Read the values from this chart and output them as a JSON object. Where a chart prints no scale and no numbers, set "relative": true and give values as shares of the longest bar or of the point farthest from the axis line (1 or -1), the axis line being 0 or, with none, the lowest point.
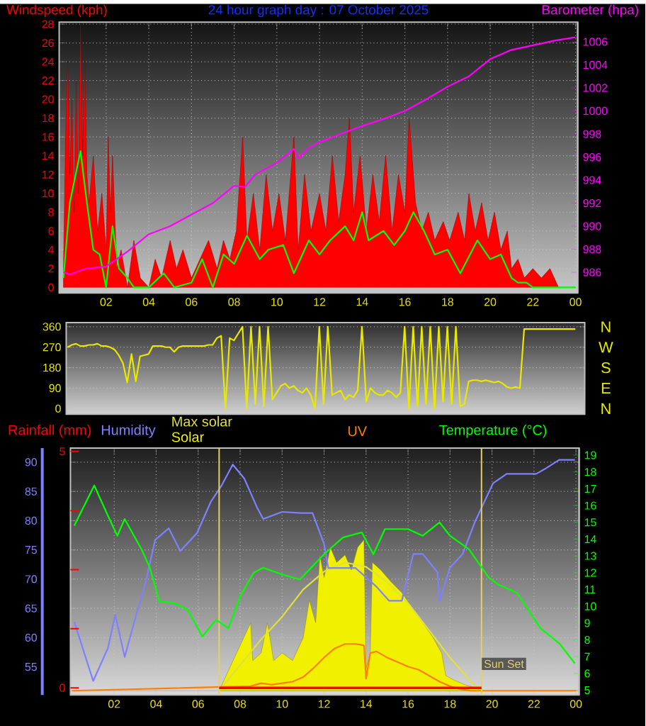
{
  "chart_data": [
    {
      "type": "line",
      "title": "24 hour graph day : 07 October 2025",
      "ylabel": "Windspeed (kph)",
      "y2label": "Barometer (hpa)",
      "xlim": [
        "2025-10-06T23:48",
        "2025-10-08T00:06"
      ],
      "xticks": [
        {
          "value": "2025-10-07T02:00",
          "label": "02"
        },
        {
          "value": "2025-10-07T04:00",
          "label": "04"
        },
        {
          "value": "2025-10-07T06:00",
          "label": "06"
        },
        {
          "value": "2025-10-07T08:00",
          "label": "08"
        },
        {
          "value": "2025-10-07T10:00",
          "label": "10"
        },
        {
          "value": "2025-10-07T12:00",
          "label": "12"
        },
        {
          "value": "2025-10-07T14:00",
          "label": "14"
        },
        {
          "value": "2025-10-07T16:00",
          "label": "16"
        },
        {
          "value": "2025-10-07T18:00",
          "label": "18"
        },
        {
          "value": "2025-10-07T20:00",
          "label": "20"
        },
        {
          "value": "2025-10-07T22:00",
          "label": "22"
        },
        {
          "value": "2025-10-08T00:00",
          "label": "00"
        }
      ],
      "ylim": [
        -0.6,
        28.2
      ],
      "yticks": [
        0,
        2,
        4,
        6,
        8,
        10,
        12,
        14,
        16,
        18,
        20,
        22,
        24,
        26,
        28
      ],
      "y2lim": [
        984.2,
        1007.7
      ],
      "y2ticks": [
        986,
        988,
        990,
        992,
        994,
        996,
        998,
        1000,
        1002,
        1004,
        1006
      ],
      "grid": true,
      "series": [
        {
          "type": "area",
          "color": "#ff0000",
          "x": [
            "2025-10-07T00:00",
            "2025-10-07T00:06",
            "2025-10-07T00:12",
            "2025-10-07T00:18",
            "2025-10-07T00:24",
            "2025-10-07T00:30",
            "2025-10-07T00:36",
            "2025-10-07T00:42",
            "2025-10-07T00:48",
            "2025-10-07T00:54",
            "2025-10-07T01:00",
            "2025-10-07T01:06",
            "2025-10-07T01:12",
            "2025-10-07T01:24",
            "2025-10-07T01:36",
            "2025-10-07T01:48",
            "2025-10-07T02:00",
            "2025-10-07T02:06",
            "2025-10-07T02:12",
            "2025-10-07T02:18",
            "2025-10-07T02:30",
            "2025-10-07T02:42",
            "2025-10-07T03:00",
            "2025-10-07T03:18",
            "2025-10-07T03:36",
            "2025-10-07T04:00",
            "2025-10-07T04:18",
            "2025-10-07T04:36",
            "2025-10-07T05:00",
            "2025-10-07T05:18",
            "2025-10-07T05:36",
            "2025-10-07T06:00",
            "2025-10-07T06:24",
            "2025-10-07T06:48",
            "2025-10-07T07:12",
            "2025-10-07T07:30",
            "2025-10-07T07:48",
            "2025-10-07T08:06",
            "2025-10-07T08:24",
            "2025-10-07T08:36",
            "2025-10-07T08:54",
            "2025-10-07T09:12",
            "2025-10-07T09:30",
            "2025-10-07T09:48",
            "2025-10-07T10:06",
            "2025-10-07T10:24",
            "2025-10-07T10:48",
            "2025-10-07T11:00",
            "2025-10-07T11:18",
            "2025-10-07T11:36",
            "2025-10-07T12:00",
            "2025-10-07T12:18",
            "2025-10-07T12:36",
            "2025-10-07T12:54",
            "2025-10-07T13:12",
            "2025-10-07T13:24",
            "2025-10-07T13:36",
            "2025-10-07T13:54",
            "2025-10-07T14:12",
            "2025-10-07T14:30",
            "2025-10-07T14:48",
            "2025-10-07T15:06",
            "2025-10-07T15:24",
            "2025-10-07T15:42",
            "2025-10-07T16:00",
            "2025-10-07T16:12",
            "2025-10-07T16:30",
            "2025-10-07T16:48",
            "2025-10-07T17:06",
            "2025-10-07T17:24",
            "2025-10-07T17:48",
            "2025-10-07T18:06",
            "2025-10-07T18:30",
            "2025-10-07T18:48",
            "2025-10-07T19:00",
            "2025-10-07T19:18",
            "2025-10-07T19:36",
            "2025-10-07T19:54",
            "2025-10-07T20:12",
            "2025-10-07T20:30",
            "2025-10-07T20:48",
            "2025-10-07T21:00",
            "2025-10-07T21:18",
            "2025-10-07T21:36",
            "2025-10-07T22:00",
            "2025-10-07T22:24",
            "2025-10-07T22:48",
            "2025-10-07T23:12",
            "2025-10-07T23:36",
            "2025-10-08T00:00"
          ],
          "values": [
            2,
            16,
            24,
            12,
            20,
            8,
            22,
            10,
            28,
            14,
            24,
            12,
            9,
            14,
            6,
            10,
            4,
            16,
            8,
            14,
            2,
            4,
            0,
            5,
            1,
            0,
            3,
            1,
            5,
            2,
            4,
            1,
            3,
            5,
            2,
            5,
            3,
            6,
            16,
            5,
            10,
            4,
            12,
            6,
            10,
            5,
            16,
            4,
            12,
            6,
            10,
            6,
            14,
            7,
            12,
            18,
            8,
            14,
            6,
            12,
            7,
            14,
            6,
            12,
            8,
            18,
            9,
            6,
            8,
            5,
            7,
            5,
            8,
            5,
            10,
            6,
            9,
            5,
            8,
            4,
            6,
            2,
            3,
            1,
            2,
            1,
            2,
            0,
            0,
            0
          ]
        },
        {
          "color": "#00ff00",
          "x": [
            "2025-10-07T00:00",
            "2025-10-07T00:18",
            "2025-10-07T00:48",
            "2025-10-07T01:06",
            "2025-10-07T01:24",
            "2025-10-07T01:42",
            "2025-10-07T02:00",
            "2025-10-07T02:18",
            "2025-10-07T02:36",
            "2025-10-07T03:00",
            "2025-10-07T03:18",
            "2025-10-07T04:00",
            "2025-10-07T04:42",
            "2025-10-07T05:12",
            "2025-10-07T06:00",
            "2025-10-07T06:30",
            "2025-10-07T07:00",
            "2025-10-07T07:30",
            "2025-10-07T08:00",
            "2025-10-07T08:36",
            "2025-10-07T09:12",
            "2025-10-07T09:36",
            "2025-10-07T10:18",
            "2025-10-07T10:48",
            "2025-10-07T11:30",
            "2025-10-07T12:00",
            "2025-10-07T12:30",
            "2025-10-07T13:12",
            "2025-10-07T13:36",
            "2025-10-07T14:00",
            "2025-10-07T14:18",
            "2025-10-07T15:00",
            "2025-10-07T15:30",
            "2025-10-07T16:00",
            "2025-10-07T16:24",
            "2025-10-07T16:54",
            "2025-10-07T17:24",
            "2025-10-07T18:00",
            "2025-10-07T18:36",
            "2025-10-07T19:24",
            "2025-10-07T20:00",
            "2025-10-07T20:30",
            "2025-10-07T21:00",
            "2025-10-07T21:18",
            "2025-10-07T21:42",
            "2025-10-07T22:00",
            "2025-10-08T00:00"
          ],
          "values": [
            1,
            9,
            14.5,
            9,
            4,
            3.5,
            0,
            6.5,
            2,
            1,
            0,
            0,
            1.5,
            0,
            0.5,
            3,
            0,
            3.5,
            2.5,
            5.5,
            3,
            4,
            4.5,
            1.5,
            5,
            3.5,
            5,
            6.5,
            5,
            8,
            5,
            6,
            4.5,
            6,
            8,
            6,
            3.5,
            4,
            1.5,
            5,
            3,
            3.5,
            1,
            0.5,
            0.5,
            0,
            0
          ]
        },
        {
          "color": "#ff00ff",
          "axis": "y2",
          "x": [
            "2025-10-07T00:00",
            "2025-10-07T00:18",
            "2025-10-07T01:00",
            "2025-10-07T02:00",
            "2025-10-07T03:00",
            "2025-10-07T04:00",
            "2025-10-07T05:00",
            "2025-10-07T06:00",
            "2025-10-07T07:00",
            "2025-10-07T08:00",
            "2025-10-07T08:30",
            "2025-10-07T09:00",
            "2025-10-07T10:00",
            "2025-10-07T10:48",
            "2025-10-07T11:00",
            "2025-10-07T11:30",
            "2025-10-07T12:00",
            "2025-10-07T13:00",
            "2025-10-07T14:00",
            "2025-10-07T15:00",
            "2025-10-07T16:00",
            "2025-10-07T17:00",
            "2025-10-07T18:00",
            "2025-10-07T19:00",
            "2025-10-07T20:00",
            "2025-10-07T21:00",
            "2025-10-07T22:00",
            "2025-10-07T23:00",
            "2025-10-08T00:00"
          ],
          "values": [
            986,
            985.8,
            986.3,
            986.5,
            987.8,
            989.3,
            990,
            991,
            992,
            993.5,
            993.4,
            994.5,
            995.5,
            996.7,
            995.9,
            996.8,
            997.3,
            998,
            998.7,
            999.3,
            1000,
            1001,
            1002.1,
            1003,
            1004.5,
            1005.3,
            1005.7,
            1006.1,
            1006.4
          ]
        }
      ]
    },
    {
      "type": "line",
      "categories": [
        null,
        null,
        null,
        null,
        null,
        null,
        null,
        null,
        null,
        null,
        null,
        null,
        null,
        null,
        null,
        null,
        null,
        null,
        null,
        null,
        null,
        null,
        null,
        null,
        null,
        null,
        null,
        null,
        null,
        null,
        null,
        null,
        null,
        null,
        null,
        null,
        null,
        null,
        null,
        null,
        null,
        null,
        null,
        null,
        null,
        null,
        null,
        null,
        null,
        null,
        null,
        null,
        null,
        null,
        null,
        null,
        null,
        null,
        null,
        null,
        null,
        null,
        null,
        null,
        null,
        null,
        null,
        null,
        null,
        null,
        null,
        null,
        null,
        null,
        null,
        null,
        null,
        null,
        null,
        null,
        null,
        null,
        null,
        null,
        null,
        null,
        null,
        null,
        null,
        null,
        null,
        null,
        null,
        null,
        null,
        null,
        null,
        null,
        null,
        null,
        null,
        null,
        null,
        null,
        null,
        null,
        null,
        null,
        null,
        null,
        null,
        null,
        null,
        null,
        null,
        null,
        null,
        null,
        null,
        null
      ],
      "ylim": [
        -25,
        378
      ],
      "yticks": [
        0,
        90,
        180,
        270,
        360
      ],
      "annotations": [
        "N",
        "W",
        "S",
        "E",
        "N"
      ],
      "tick_labels": "y",
      "grid": "y",
      "series": [
        {
          "color": "#e8e800",
          "values": [
            270,
            280,
            285,
            275,
            275,
            280,
            280,
            285,
            275,
            275,
            270,
            260,
            235,
            200,
            115,
            240,
            120,
            230,
            235,
            240,
            275,
            275,
            275,
            270,
            270,
            250,
            270,
            275,
            275,
            275,
            275,
            275,
            275,
            280,
            280,
            310,
            320,
            0,
            310,
            300,
            330,
            360,
            0,
            360,
            20,
            360,
            10,
            360,
            40,
            70,
            100,
            110,
            90,
            100,
            80,
            70,
            90,
            60,
            0,
            360,
            20,
            360,
            60,
            70,
            80,
            40,
            60,
            50,
            80,
            360,
            30,
            90,
            70,
            60,
            60,
            80,
            70,
            50,
            70,
            360,
            0,
            360,
            10,
            360,
            20,
            360,
            0,
            360,
            30,
            360,
            20,
            360,
            10,
            20,
            120,
            125,
            125,
            120,
            125,
            120,
            115,
            120,
            110,
            95,
            90,
            95,
            90,
            350,
            350,
            350,
            350,
            350,
            350,
            350,
            350,
            350,
            350,
            350,
            350,
            350
          ]
        }
      ]
    },
    {
      "type": "line",
      "xlim": [
        "2025-10-06T23:55",
        "2025-10-08T00:09"
      ],
      "xticks": [
        {
          "value": "2025-10-07T02:00",
          "label": "02"
        },
        {
          "value": "2025-10-07T04:00",
          "label": "04"
        },
        {
          "value": "2025-10-07T06:00",
          "label": "06"
        },
        {
          "value": "2025-10-07T08:00",
          "label": "08"
        },
        {
          "value": "2025-10-07T10:00",
          "label": "10"
        },
        {
          "value": "2025-10-07T12:00",
          "label": "12"
        },
        {
          "value": "2025-10-07T14:00",
          "label": "14"
        },
        {
          "value": "2025-10-07T16:00",
          "label": "16"
        },
        {
          "value": "2025-10-07T18:00",
          "label": "18"
        },
        {
          "value": "2025-10-07T20:00",
          "label": "20"
        },
        {
          "value": "2025-10-07T22:00",
          "label": "22"
        },
        {
          "value": "2025-10-08T00:00",
          "label": "00"
        }
      ],
      "ylim": [
        50.2,
        92.4
      ],
      "yticks": [
        55,
        60,
        65,
        70,
        75,
        80,
        85,
        90
      ],
      "y2lim": [
        4.72,
        19.42
      ],
      "y2ticks": [
        5,
        6,
        7,
        8,
        9,
        10,
        11,
        12,
        13,
        14,
        15,
        16,
        17,
        18,
        19
      ],
      "y3lim": [
        -0.15,
        5.07
      ],
      "y3ticks": [
        0,
        {
          "value": 1.25,
          "label": null
        },
        {
          "value": 2.5,
          "label": null
        },
        {
          "value": 3.75,
          "label": null
        },
        5
      ],
      "grid": true,
      "ref_lines": [
        {
          "axis": "x",
          "value": "2025-10-07T07:00",
          "color": "#e8d060"
        },
        {
          "axis": "x",
          "value": "2025-10-07T19:30",
          "label": "Sun Set",
          "color": "#e8d060"
        }
      ],
      "series": [
        {
          "name": "Rainfall (mm)",
          "color": "#ff0000",
          "axis": "y3",
          "x": [
            "2025-10-07T07:00",
            "2025-10-07T19:30"
          ],
          "values": [
            0,
            0
          ]
        },
        {
          "name": "Humidity",
          "color": "#8080ff",
          "x": [
            "2025-10-07T00:06",
            "2025-10-07T01:00",
            "2025-10-07T01:42",
            "2025-10-07T02:03",
            "2025-10-07T02:30",
            "2025-10-07T03:03",
            "2025-10-07T03:30",
            "2025-10-07T03:57",
            "2025-10-07T04:36",
            "2025-10-07T05:09",
            "2025-10-07T05:57",
            "2025-10-07T06:36",
            "2025-10-07T07:06",
            "2025-10-07T07:39",
            "2025-10-07T08:12",
            "2025-10-07T08:48",
            "2025-10-07T09:06",
            "2025-10-07T10:00",
            "2025-10-07T10:54",
            "2025-10-07T11:27",
            "2025-10-07T12:00",
            "2025-10-07T12:12",
            "2025-10-07T12:42",
            "2025-10-07T13:30",
            "2025-10-07T14:30",
            "2025-10-07T15:06",
            "2025-10-07T15:42",
            "2025-10-07T16:15",
            "2025-10-07T16:42",
            "2025-10-07T17:24",
            "2025-10-07T17:30",
            "2025-10-07T18:00",
            "2025-10-07T18:36",
            "2025-10-07T19:12",
            "2025-10-07T20:03",
            "2025-10-07T20:42",
            "2025-10-07T22:06",
            "2025-10-07T22:30",
            "2025-10-07T23:12",
            "2025-10-07T23:57"
          ],
          "values": [
            62.7,
            52.6,
            58.2,
            63.9,
            56.7,
            63.9,
            69.5,
            76.7,
            78.7,
            74.8,
            77.9,
            83.2,
            85.9,
            89.6,
            87.2,
            82.3,
            80.3,
            81.5,
            81.3,
            81.3,
            76,
            71.9,
            71.9,
            71.9,
            68.7,
            66.3,
            66.3,
            74.3,
            74.3,
            71.2,
            66.3,
            72,
            74.3,
            79.9,
            86.4,
            88,
            88,
            88.8,
            90.4,
            90.4
          ]
        },
        {
          "name": "Temperature (°C)",
          "color": "#00ff00",
          "axis": "y2",
          "x": [
            "2025-10-07T00:06",
            "2025-10-07T01:03",
            "2025-10-07T01:42",
            "2025-10-07T02:09",
            "2025-10-07T02:30",
            "2025-10-07T03:18",
            "2025-10-07T03:42",
            "2025-10-07T04:09",
            "2025-10-07T04:51",
            "2025-10-07T05:30",
            "2025-10-07T06:12",
            "2025-10-07T06:51",
            "2025-10-07T07:27",
            "2025-10-07T08:00",
            "2025-10-07T08:39",
            "2025-10-07T09:06",
            "2025-10-07T10:00",
            "2025-10-07T10:51",
            "2025-10-07T12:00",
            "2025-10-07T12:54",
            "2025-10-07T13:48",
            "2025-10-07T14:21",
            "2025-10-07T14:54",
            "2025-10-07T16:00",
            "2025-10-07T16:42",
            "2025-10-07T17:30",
            "2025-10-07T18:00",
            "2025-10-07T18:54",
            "2025-10-07T19:51",
            "2025-10-07T20:18",
            "2025-10-07T21:12",
            "2025-10-07T22:18",
            "2025-10-07T23:12",
            "2025-10-07T23:57"
          ],
          "values": [
            14.8,
            17.2,
            15.4,
            14.2,
            15.2,
            13.4,
            12.3,
            10.3,
            10.2,
            9.8,
            8.2,
            9.2,
            8.7,
            10.6,
            12,
            12.3,
            11.9,
            11.6,
            13.1,
            14.1,
            14.4,
            13.1,
            14.6,
            14.6,
            14.2,
            15,
            14.2,
            13.4,
            11.7,
            11.3,
            10.8,
            8.7,
            7.8,
            6.6
          ]
        }
      ]
    },
    {
      "type": "line",
      "relative": true,
      "xlim": [
        "2025-10-06T23:55",
        "2025-10-08T00:09"
      ],
      "tick_labels": false,
      "series": [
        {
          "name": "Max solar",
          "color": "#e0e040",
          "x": [
            "2025-10-07T07:00",
            "2025-10-07T08:00",
            "2025-10-07T09:00",
            "2025-10-07T10:00",
            "2025-10-07T11:00",
            "2025-10-07T12:00",
            "2025-10-07T13:00",
            "2025-10-07T14:00",
            "2025-10-07T15:00",
            "2025-10-07T16:00",
            "2025-10-07T17:00",
            "2025-10-07T18:00",
            "2025-10-07T19:00",
            "2025-10-07T19:30"
          ],
          "values": [
            0,
            0.17,
            0.34,
            0.49,
            0.67,
            0.79,
            0.85,
            0.82,
            0.72,
            0.58,
            0.4,
            0.22,
            0.06,
            0
          ]
        },
        {
          "name": "Solar",
          "type": "area",
          "color": "#f0f000",
          "x": [
            "2025-10-07T07:00",
            "2025-10-07T07:30",
            "2025-10-07T08:00",
            "2025-10-07T08:30",
            "2025-10-07T08:36",
            "2025-10-07T09:00",
            "2025-10-07T09:18",
            "2025-10-07T09:36",
            "2025-10-07T10:00",
            "2025-10-07T10:30",
            "2025-10-07T11:00",
            "2025-10-07T11:18",
            "2025-10-07T11:36",
            "2025-10-07T11:48",
            "2025-10-07T12:00",
            "2025-10-07T12:18",
            "2025-10-07T12:36",
            "2025-10-07T13:00",
            "2025-10-07T13:18",
            "2025-10-07T13:36",
            "2025-10-07T13:54",
            "2025-10-07T14:00",
            "2025-10-07T14:12",
            "2025-10-07T14:18",
            "2025-10-07T14:42",
            "2025-10-07T15:12",
            "2025-10-07T15:42",
            "2025-10-07T16:12",
            "2025-10-07T16:42",
            "2025-10-07T17:12",
            "2025-10-07T17:36",
            "2025-10-07T17:48",
            "2025-10-07T18:12",
            "2025-10-07T18:42",
            "2025-10-07T19:12",
            "2025-10-07T19:30"
          ],
          "values": [
            0,
            0.15,
            0.3,
            0.45,
            0.2,
            0.25,
            0.45,
            0.2,
            0.25,
            0.2,
            0.35,
            0.6,
            0.45,
            0.9,
            0.75,
            0.95,
            0.85,
            0.9,
            0.8,
            0.95,
            1,
            0.15,
            0.25,
            0.85,
            0.8,
            0.72,
            0.65,
            0.55,
            0.45,
            0.35,
            0.25,
            0.1,
            0.07,
            0.04,
            0.02,
            0
          ]
        },
        {
          "name": "UV",
          "color": "#ff8000",
          "x": [
            "2025-10-07T00:00",
            "2025-10-07T08:30",
            "2025-10-07T09:00",
            "2025-10-07T09:30",
            "2025-10-07T10:00",
            "2025-10-07T10:30",
            "2025-10-07T11:00",
            "2025-10-07T11:30",
            "2025-10-07T12:00",
            "2025-10-07T12:30",
            "2025-10-07T13:00",
            "2025-10-07T13:30",
            "2025-10-07T13:54",
            "2025-10-07T14:00",
            "2025-10-07T14:12",
            "2025-10-07T14:30",
            "2025-10-07T15:00",
            "2025-10-07T15:30",
            "2025-10-07T16:00",
            "2025-10-07T16:30",
            "2025-10-07T17:00",
            "2025-10-07T17:30",
            "2025-10-07T18:00",
            "2025-10-07T18:30",
            "2025-10-07T19:00",
            "2025-10-08T00:00"
          ],
          "values": [
            0,
            0.03,
            0.05,
            0.04,
            0.05,
            0.06,
            0.09,
            0.15,
            0.22,
            0.28,
            0.31,
            0.31,
            0.3,
            0.08,
            0.25,
            0.26,
            0.22,
            0.19,
            0.16,
            0.14,
            0.1,
            0.06,
            0.03,
            0.01,
            0,
            0
          ]
        }
      ]
    }
  ]
}
